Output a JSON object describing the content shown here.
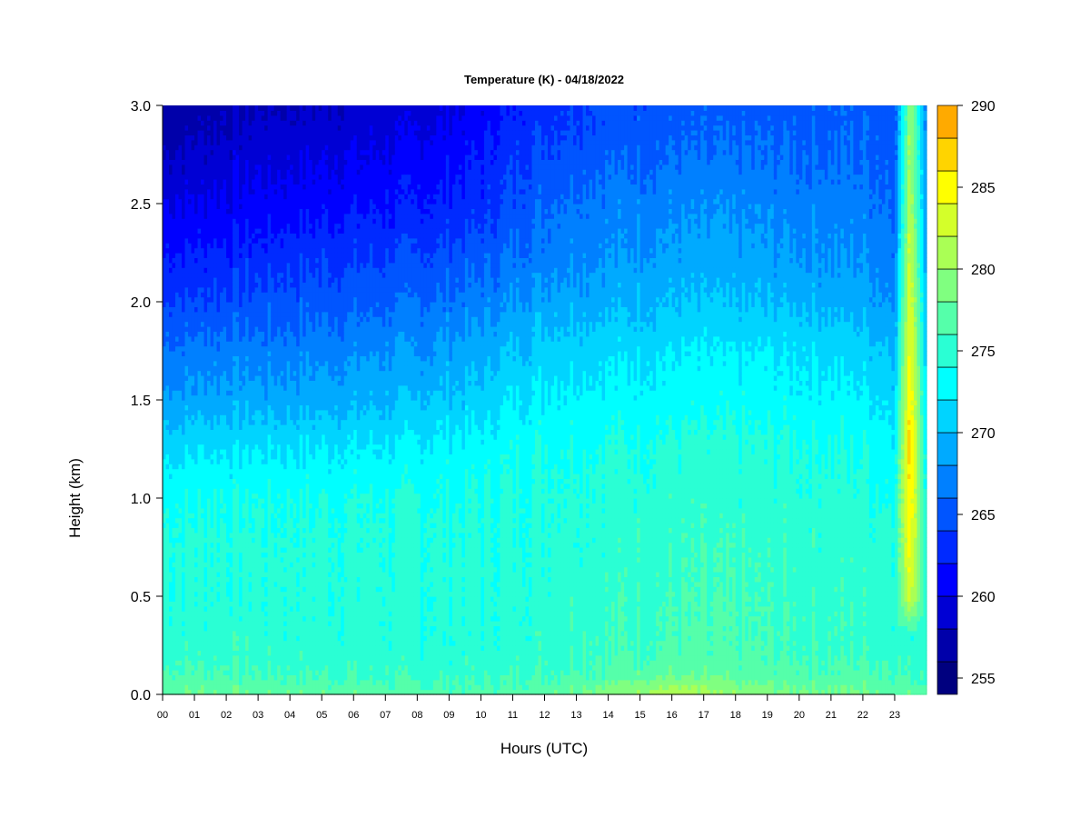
{
  "chart_data": {
    "type": "heatmap",
    "title": "Temperature (K) - 04/18/2022",
    "xlabel": "Hours (UTC)",
    "ylabel": "Height (km)",
    "x_ticks": [
      "00",
      "01",
      "02",
      "03",
      "04",
      "05",
      "06",
      "07",
      "08",
      "09",
      "10",
      "11",
      "12",
      "13",
      "14",
      "15",
      "16",
      "17",
      "18",
      "19",
      "20",
      "21",
      "22",
      "23"
    ],
    "y_ticks": [
      "0.0",
      "0.5",
      "1.0",
      "1.5",
      "2.0",
      "2.5",
      "3.0"
    ],
    "xlim": [
      0,
      24
    ],
    "ylim": [
      0,
      3.0
    ],
    "colorbar": {
      "ticks": [
        "255",
        "260",
        "265",
        "270",
        "275",
        "280",
        "285",
        "290"
      ],
      "range": [
        254,
        290
      ],
      "step": 2,
      "colors": [
        "#00007F",
        "#0000AA",
        "#0000D4",
        "#0000FF",
        "#002AFF",
        "#0055FF",
        "#0080FF",
        "#00AAFF",
        "#00D4FF",
        "#00FFFF",
        "#2AFFD4",
        "#55FFAA",
        "#80FF80",
        "#AAFF55",
        "#D4FF2A",
        "#FFFF00",
        "#FFD400",
        "#FFAA00",
        "#FF8000",
        "#FF5500",
        "#FF2A00",
        "#FF0000",
        "#D40000",
        "#AA0000",
        "#7F0000"
      ]
    },
    "heights_km": [
      0.0,
      0.05,
      0.1,
      0.2,
      0.3,
      0.5,
      0.75,
      1.0,
      1.25,
      1.5,
      1.75,
      2.0,
      2.25,
      2.5,
      2.75,
      3.0
    ],
    "hours": [
      0,
      2,
      4,
      6,
      8,
      10,
      11,
      12,
      14,
      16,
      18,
      20,
      22,
      23,
      23.5,
      24
    ],
    "temperature_K": [
      [
        278.5,
        278.0,
        277.8,
        277.5,
        277.2,
        277.0,
        277.2,
        277.8,
        279.0,
        281.5,
        279.5,
        278.5,
        278.5,
        278.0,
        277.0,
        277.0
      ],
      [
        277.5,
        277.0,
        276.8,
        276.5,
        276.0,
        276.0,
        276.2,
        276.8,
        278.0,
        280.0,
        278.5,
        277.5,
        277.5,
        277.0,
        276.5,
        276.5
      ],
      [
        276.5,
        276.5,
        276.0,
        276.0,
        275.5,
        275.5,
        275.8,
        276.0,
        276.8,
        278.0,
        277.0,
        276.8,
        276.5,
        276.5,
        276.0,
        276.0
      ],
      [
        275.5,
        275.5,
        275.0,
        275.0,
        274.8,
        274.8,
        275.0,
        275.5,
        276.0,
        276.5,
        276.2,
        276.0,
        275.8,
        275.5,
        275.0,
        275.0
      ],
      [
        275.0,
        275.0,
        274.8,
        274.8,
        274.5,
        274.5,
        274.8,
        275.2,
        275.8,
        276.2,
        276.0,
        275.8,
        275.5,
        275.0,
        275.0,
        275.0
      ],
      [
        274.5,
        274.5,
        274.5,
        274.5,
        274.5,
        274.5,
        274.8,
        275.0,
        275.5,
        275.8,
        275.8,
        275.5,
        275.2,
        275.0,
        283.0,
        275.0
      ],
      [
        274.5,
        274.5,
        274.5,
        274.5,
        274.5,
        274.5,
        274.5,
        274.8,
        275.0,
        275.5,
        275.5,
        275.2,
        275.0,
        274.8,
        285.0,
        274.5
      ],
      [
        273.5,
        274.0,
        274.0,
        274.0,
        274.0,
        274.0,
        274.2,
        274.5,
        274.8,
        275.0,
        275.0,
        274.8,
        274.5,
        274.0,
        286.0,
        274.0
      ],
      [
        271.5,
        272.0,
        272.0,
        272.0,
        272.5,
        273.0,
        273.5,
        274.0,
        274.2,
        274.5,
        274.5,
        274.2,
        274.0,
        273.0,
        287.0,
        273.0
      ],
      [
        268.5,
        269.0,
        269.0,
        269.5,
        270.0,
        271.0,
        272.0,
        272.5,
        273.0,
        273.0,
        273.2,
        273.0,
        272.5,
        271.5,
        286.0,
        272.0
      ],
      [
        266.5,
        267.0,
        267.0,
        267.5,
        268.0,
        269.0,
        270.0,
        271.0,
        271.5,
        272.0,
        272.0,
        271.8,
        271.0,
        270.0,
        285.0,
        271.0
      ],
      [
        264.0,
        264.5,
        265.0,
        265.5,
        266.0,
        267.0,
        268.0,
        269.0,
        269.5,
        270.0,
        270.0,
        269.8,
        269.0,
        268.0,
        284.0,
        270.0
      ],
      [
        262.0,
        262.5,
        263.0,
        263.5,
        264.0,
        265.0,
        266.0,
        267.0,
        268.0,
        268.5,
        268.5,
        268.2,
        267.8,
        267.0,
        283.0,
        269.0
      ],
      [
        260.0,
        260.5,
        261.0,
        261.5,
        262.0,
        263.0,
        264.5,
        266.0,
        267.0,
        267.5,
        267.5,
        267.2,
        266.8,
        266.0,
        282.0,
        268.0
      ],
      [
        258.0,
        259.0,
        259.5,
        260.0,
        260.5,
        262.0,
        263.5,
        264.5,
        265.5,
        266.0,
        266.0,
        266.0,
        266.0,
        265.5,
        281.0,
        268.0
      ],
      [
        256.5,
        257.5,
        258.0,
        258.5,
        259.0,
        260.5,
        262.0,
        263.5,
        264.5,
        265.0,
        265.0,
        265.2,
        265.5,
        265.0,
        280.0,
        267.5
      ]
    ]
  }
}
